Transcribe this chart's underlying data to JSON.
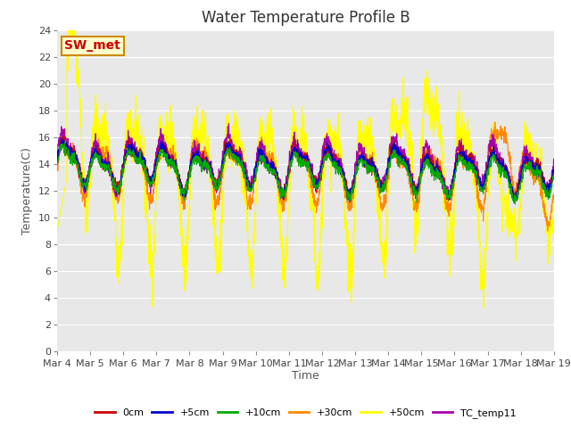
{
  "title": "Water Temperature Profile B",
  "xlabel": "Time",
  "ylabel": "Temperature(C)",
  "ylim": [
    0,
    24
  ],
  "yticks": [
    0,
    2,
    4,
    6,
    8,
    10,
    12,
    14,
    16,
    18,
    20,
    22,
    24
  ],
  "x_labels": [
    "Mar 4",
    "Mar 5",
    "Mar 6",
    "Mar 7",
    "Mar 8",
    "Mar 9",
    "Mar 10",
    "Mar 11",
    "Mar 12",
    "Mar 13",
    "Mar 14",
    "Mar 15",
    "Mar 16",
    "Mar 17",
    "Mar 18",
    "Mar 19"
  ],
  "series_colors": {
    "0cm": "#cc0000",
    "+5cm": "#0000cc",
    "+10cm": "#00aa00",
    "+30cm": "#ff8800",
    "+50cm": "#ffff00",
    "TC_temp11": "#aa00aa"
  },
  "annotation_text": "SW_met",
  "annotation_color": "#cc0000",
  "annotation_bg": "#ffffcc",
  "annotation_border": "#cc8800",
  "plot_bg": "#e8e8e8",
  "grid_color": "#ffffff",
  "title_fontsize": 12,
  "tick_fontsize": 8,
  "label_fontsize": 9
}
